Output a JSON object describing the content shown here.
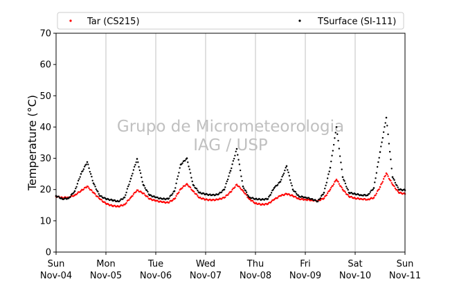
{
  "chart_data": {
    "type": "scatter",
    "ylabel": "Temperature (°C)",
    "ylim": [
      0,
      70
    ],
    "yticks": [
      0,
      10,
      20,
      30,
      40,
      50,
      60,
      70
    ],
    "xlim": [
      "2020-11-04T00:00",
      "2020-11-11T00:00"
    ],
    "xticks": [
      {
        "date": "2020-11-04T00:00",
        "day": "Sun",
        "date_label": "Nov-04"
      },
      {
        "date": "2020-11-05T00:00",
        "day": "Mon",
        "date_label": "Nov-05"
      },
      {
        "date": "2020-11-06T00:00",
        "day": "Tue",
        "date_label": "Nov-06"
      },
      {
        "date": "2020-11-07T00:00",
        "day": "Wed",
        "date_label": "Nov-07"
      },
      {
        "date": "2020-11-08T00:00",
        "day": "Thu",
        "date_label": "Nov-08"
      },
      {
        "date": "2020-11-09T00:00",
        "day": "Fri",
        "date_label": "Nov-09"
      },
      {
        "date": "2020-11-10T00:00",
        "day": "Sat",
        "date_label": "Nov-10"
      },
      {
        "date": "2020-11-11T00:00",
        "day": "Sun",
        "date_label": "Nov-11"
      }
    ],
    "grid": "vertical",
    "legend": {
      "placement": "top",
      "columns": 2
    },
    "watermark": [
      "Grupo de Micrometeorologia",
      "IAG / USP"
    ],
    "series": [
      {
        "name": "Tar (CS215)",
        "color": "#ff0000",
        "points": [
          {
            "x": "2020-11-04T00:00",
            "y": 17.8
          },
          {
            "x": "2020-11-04T03:00",
            "y": 17.4
          },
          {
            "x": "2020-11-04T06:00",
            "y": 17.5
          },
          {
            "x": "2020-11-04T09:00",
            "y": 18.2
          },
          {
            "x": "2020-11-04T12:00",
            "y": 19.6
          },
          {
            "x": "2020-11-04T15:00",
            "y": 21.0
          },
          {
            "x": "2020-11-04T18:00",
            "y": 19.0
          },
          {
            "x": "2020-11-04T21:00",
            "y": 17.0
          },
          {
            "x": "2020-11-05T00:00",
            "y": 15.5
          },
          {
            "x": "2020-11-05T03:00",
            "y": 14.8
          },
          {
            "x": "2020-11-05T06:00",
            "y": 14.6
          },
          {
            "x": "2020-11-05T09:00",
            "y": 15.2
          },
          {
            "x": "2020-11-05T12:00",
            "y": 17.5
          },
          {
            "x": "2020-11-05T15:00",
            "y": 19.8
          },
          {
            "x": "2020-11-05T18:00",
            "y": 18.8
          },
          {
            "x": "2020-11-05T21:00",
            "y": 17.0
          },
          {
            "x": "2020-11-06T00:00",
            "y": 16.4
          },
          {
            "x": "2020-11-06T03:00",
            "y": 16.0
          },
          {
            "x": "2020-11-06T06:00",
            "y": 15.8
          },
          {
            "x": "2020-11-06T09:00",
            "y": 17.0
          },
          {
            "x": "2020-11-06T12:00",
            "y": 20.2
          },
          {
            "x": "2020-11-06T15:00",
            "y": 21.8
          },
          {
            "x": "2020-11-06T18:00",
            "y": 19.5
          },
          {
            "x": "2020-11-06T21:00",
            "y": 17.4
          },
          {
            "x": "2020-11-07T00:00",
            "y": 16.8
          },
          {
            "x": "2020-11-07T03:00",
            "y": 16.6
          },
          {
            "x": "2020-11-07T06:00",
            "y": 16.8
          },
          {
            "x": "2020-11-07T09:00",
            "y": 17.4
          },
          {
            "x": "2020-11-07T12:00",
            "y": 19.2
          },
          {
            "x": "2020-11-07T15:00",
            "y": 21.6
          },
          {
            "x": "2020-11-07T18:00",
            "y": 19.6
          },
          {
            "x": "2020-11-07T21:00",
            "y": 17.0
          },
          {
            "x": "2020-11-08T00:00",
            "y": 15.6
          },
          {
            "x": "2020-11-08T03:00",
            "y": 15.2
          },
          {
            "x": "2020-11-08T06:00",
            "y": 15.4
          },
          {
            "x": "2020-11-08T09:00",
            "y": 16.8
          },
          {
            "x": "2020-11-08T12:00",
            "y": 18.0
          },
          {
            "x": "2020-11-08T15:00",
            "y": 18.6
          },
          {
            "x": "2020-11-08T18:00",
            "y": 18.0
          },
          {
            "x": "2020-11-08T21:00",
            "y": 17.0
          },
          {
            "x": "2020-11-09T00:00",
            "y": 16.8
          },
          {
            "x": "2020-11-09T03:00",
            "y": 16.6
          },
          {
            "x": "2020-11-09T06:00",
            "y": 16.4
          },
          {
            "x": "2020-11-09T09:00",
            "y": 17.2
          },
          {
            "x": "2020-11-09T12:00",
            "y": 20.0
          },
          {
            "x": "2020-11-09T15:00",
            "y": 23.2
          },
          {
            "x": "2020-11-09T18:00",
            "y": 20.0
          },
          {
            "x": "2020-11-09T21:00",
            "y": 17.8
          },
          {
            "x": "2020-11-10T00:00",
            "y": 17.2
          },
          {
            "x": "2020-11-10T03:00",
            "y": 17.0
          },
          {
            "x": "2020-11-10T06:00",
            "y": 16.8
          },
          {
            "x": "2020-11-10T09:00",
            "y": 17.4
          },
          {
            "x": "2020-11-10T12:00",
            "y": 20.8
          },
          {
            "x": "2020-11-10T15:00",
            "y": 25.2
          },
          {
            "x": "2020-11-10T18:00",
            "y": 21.6
          },
          {
            "x": "2020-11-10T21:00",
            "y": 19.0
          },
          {
            "x": "2020-11-11T00:00",
            "y": 18.6
          }
        ]
      },
      {
        "name": "TSurface (SI-111)",
        "color": "#000000",
        "points": [
          {
            "x": "2020-11-04T00:00",
            "y": 18.0
          },
          {
            "x": "2020-11-04T03:00",
            "y": 17.0
          },
          {
            "x": "2020-11-04T06:00",
            "y": 17.2
          },
          {
            "x": "2020-11-04T09:00",
            "y": 19.5
          },
          {
            "x": "2020-11-04T12:00",
            "y": 25.0
          },
          {
            "x": "2020-11-04T15:00",
            "y": 28.8
          },
          {
            "x": "2020-11-04T18:00",
            "y": 22.0
          },
          {
            "x": "2020-11-04T21:00",
            "y": 18.0
          },
          {
            "x": "2020-11-05T00:00",
            "y": 17.0
          },
          {
            "x": "2020-11-05T03:00",
            "y": 16.6
          },
          {
            "x": "2020-11-05T06:00",
            "y": 16.2
          },
          {
            "x": "2020-11-05T09:00",
            "y": 17.5
          },
          {
            "x": "2020-11-05T12:00",
            "y": 23.5
          },
          {
            "x": "2020-11-05T15:00",
            "y": 29.8
          },
          {
            "x": "2020-11-05T18:00",
            "y": 21.5
          },
          {
            "x": "2020-11-05T21:00",
            "y": 18.2
          },
          {
            "x": "2020-11-06T00:00",
            "y": 17.5
          },
          {
            "x": "2020-11-06T03:00",
            "y": 17.0
          },
          {
            "x": "2020-11-06T06:00",
            "y": 17.0
          },
          {
            "x": "2020-11-06T09:00",
            "y": 19.5
          },
          {
            "x": "2020-11-06T12:00",
            "y": 28.0
          },
          {
            "x": "2020-11-06T15:00",
            "y": 30.0
          },
          {
            "x": "2020-11-06T18:00",
            "y": 21.5
          },
          {
            "x": "2020-11-06T21:00",
            "y": 19.0
          },
          {
            "x": "2020-11-07T00:00",
            "y": 18.5
          },
          {
            "x": "2020-11-07T03:00",
            "y": 18.2
          },
          {
            "x": "2020-11-07T06:00",
            "y": 18.4
          },
          {
            "x": "2020-11-07T09:00",
            "y": 20.0
          },
          {
            "x": "2020-11-07T12:00",
            "y": 26.0
          },
          {
            "x": "2020-11-07T15:00",
            "y": 33.0
          },
          {
            "x": "2020-11-07T18:00",
            "y": 21.0
          },
          {
            "x": "2020-11-07T21:00",
            "y": 17.5
          },
          {
            "x": "2020-11-08T00:00",
            "y": 17.0
          },
          {
            "x": "2020-11-08T03:00",
            "y": 16.8
          },
          {
            "x": "2020-11-08T06:00",
            "y": 17.0
          },
          {
            "x": "2020-11-08T09:00",
            "y": 20.5
          },
          {
            "x": "2020-11-08T12:00",
            "y": 22.5
          },
          {
            "x": "2020-11-08T15:00",
            "y": 27.5
          },
          {
            "x": "2020-11-08T18:00",
            "y": 20.0
          },
          {
            "x": "2020-11-08T21:00",
            "y": 17.8
          },
          {
            "x": "2020-11-09T00:00",
            "y": 17.5
          },
          {
            "x": "2020-11-09T03:00",
            "y": 17.0
          },
          {
            "x": "2020-11-09T06:00",
            "y": 16.2
          },
          {
            "x": "2020-11-09T09:00",
            "y": 19.0
          },
          {
            "x": "2020-11-09T12:00",
            "y": 27.0
          },
          {
            "x": "2020-11-09T15:00",
            "y": 40.0
          },
          {
            "x": "2020-11-09T18:00",
            "y": 24.0
          },
          {
            "x": "2020-11-09T21:00",
            "y": 19.0
          },
          {
            "x": "2020-11-10T00:00",
            "y": 18.6
          },
          {
            "x": "2020-11-10T03:00",
            "y": 18.2
          },
          {
            "x": "2020-11-10T06:00",
            "y": 18.2
          },
          {
            "x": "2020-11-10T09:00",
            "y": 20.5
          },
          {
            "x": "2020-11-10T12:00",
            "y": 32.0
          },
          {
            "x": "2020-11-10T15:00",
            "y": 43.0
          },
          {
            "x": "2020-11-10T18:00",
            "y": 24.0
          },
          {
            "x": "2020-11-10T21:00",
            "y": 20.0
          },
          {
            "x": "2020-11-11T00:00",
            "y": 19.8
          }
        ]
      }
    ]
  }
}
